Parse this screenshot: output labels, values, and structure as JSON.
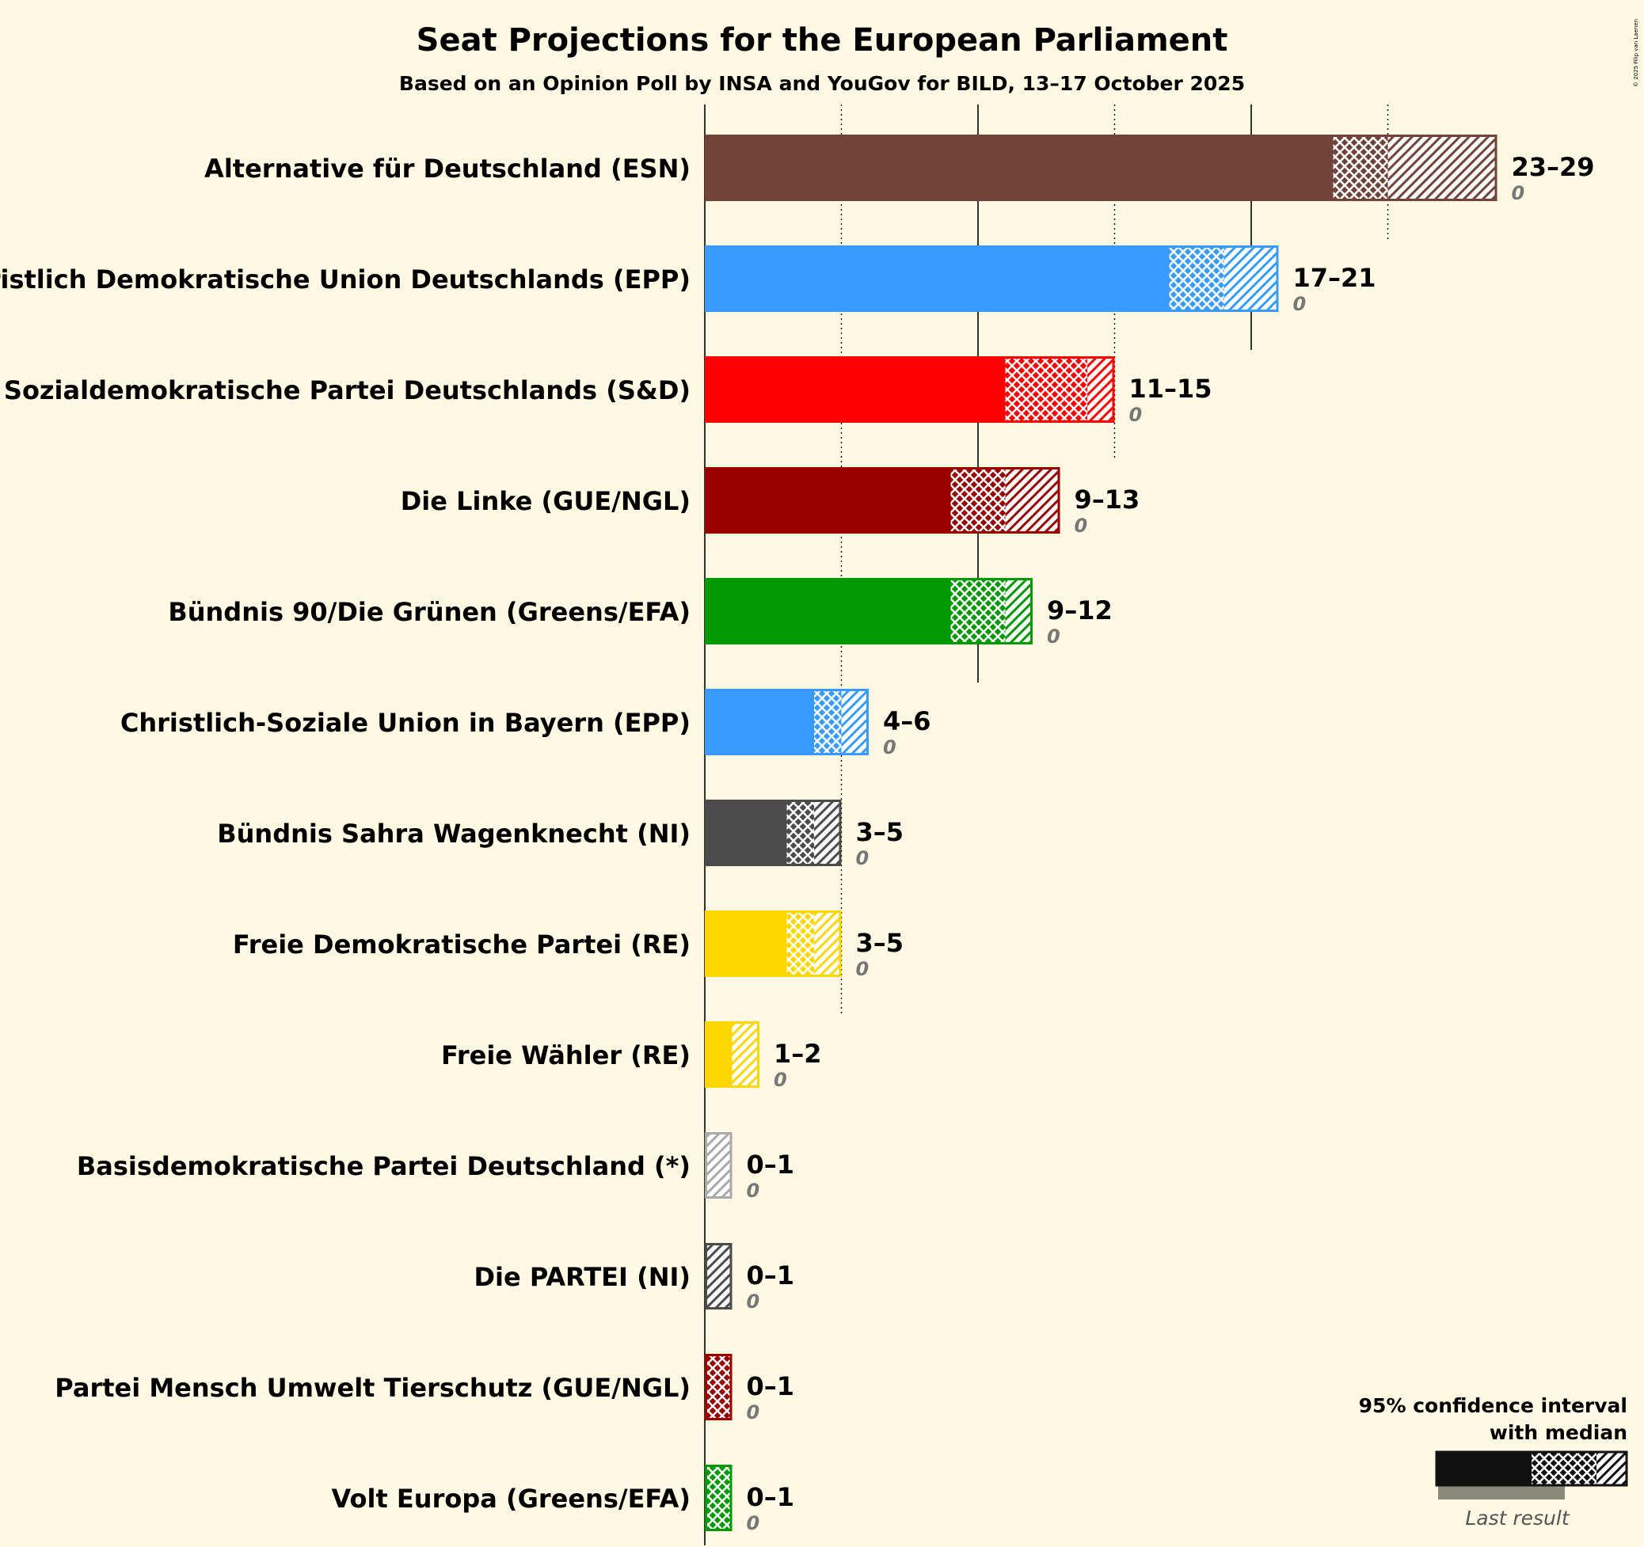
{
  "chart_data": {
    "type": "bar",
    "title": "Seat Projections for the European Parliament",
    "subtitle": "Based on an Opinion Poll by INSA and YouGov for BILD, 13–17 October 2025",
    "copyright": "© 2025 Filip van Laenen",
    "xlim": [
      0,
      30
    ],
    "gridlines": [
      5,
      10,
      15,
      20,
      25
    ],
    "parties": [
      {
        "name": "Alternative für Deutschland (ESN)",
        "color": "#714339",
        "low": 23,
        "median": 25,
        "high": 29,
        "range_label": "23–29",
        "last_result": "0"
      },
      {
        "name": "Christlich Demokratische Union Deutschlands (EPP)",
        "color": "#3A9BFF",
        "low": 17,
        "median": 19,
        "high": 21,
        "range_label": "17–21",
        "last_result": "0"
      },
      {
        "name": "Sozialdemokratische Partei Deutschlands (S&D)",
        "color": "#FF0000",
        "low": 11,
        "median": 14,
        "high": 15,
        "range_label": "11–15",
        "last_result": "0"
      },
      {
        "name": "Die Linke (GUE/NGL)",
        "color": "#990000",
        "low": 9,
        "median": 11,
        "high": 13,
        "range_label": "9–13",
        "last_result": "0"
      },
      {
        "name": "Bündnis 90/Die Grünen (Greens/EFA)",
        "color": "#009900",
        "low": 9,
        "median": 11,
        "high": 12,
        "range_label": "9–12",
        "last_result": "0"
      },
      {
        "name": "Christlich-Soziale Union in Bayern (EPP)",
        "color": "#3A9BFF",
        "low": 4,
        "median": 5,
        "high": 6,
        "range_label": "4–6",
        "last_result": "0"
      },
      {
        "name": "Bündnis Sahra Wagenknecht (NI)",
        "color": "#4B4B4B",
        "low": 3,
        "median": 4,
        "high": 5,
        "range_label": "3–5",
        "last_result": "0"
      },
      {
        "name": "Freie Demokratische Partei (RE)",
        "color": "#FFD700",
        "low": 3,
        "median": 4,
        "high": 5,
        "range_label": "3–5",
        "last_result": "0"
      },
      {
        "name": "Freie Wähler (RE)",
        "color": "#FFD700",
        "low": 1,
        "median": 1,
        "high": 2,
        "range_label": "1–2",
        "last_result": "0"
      },
      {
        "name": "Basisdemokratische Partei Deutschland (*)",
        "color": "#AAAAAA",
        "low": 0,
        "median": 0,
        "high": 1,
        "range_label": "0–1",
        "last_result": "0"
      },
      {
        "name": "Die PARTEI (NI)",
        "color": "#4B4B4B",
        "low": 0,
        "median": 0,
        "high": 1,
        "range_label": "0–1",
        "last_result": "0"
      },
      {
        "name": "Partei Mensch Umwelt Tierschutz (GUE/NGL)",
        "color": "#990000",
        "low": 0,
        "median": 1,
        "high": 1,
        "range_label": "0–1",
        "last_result": "0"
      },
      {
        "name": "Volt Europa (Greens/EFA)",
        "color": "#009900",
        "low": 0,
        "median": 1,
        "high": 1,
        "range_label": "0–1",
        "last_result": "0"
      }
    ],
    "legend": {
      "title_line1": "95% confidence interval",
      "title_line2": "with median",
      "last_result_label": "Last result",
      "placement": "bottom-right"
    }
  }
}
